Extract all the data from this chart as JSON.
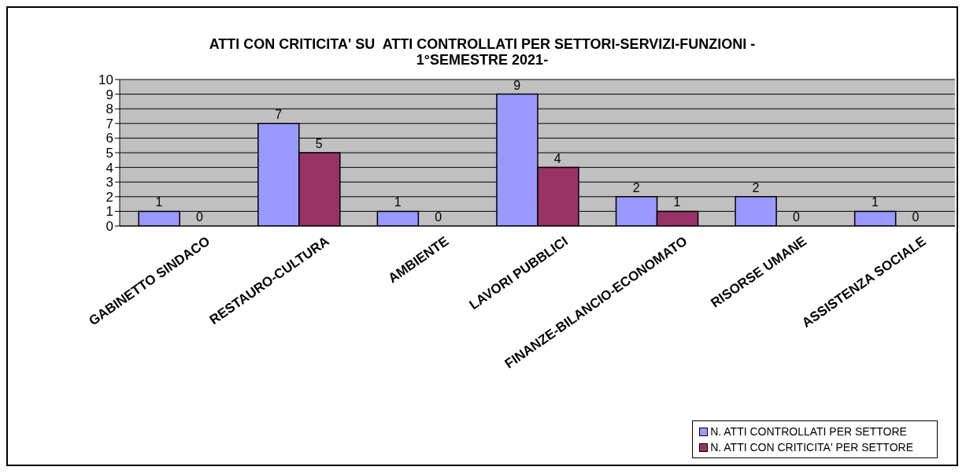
{
  "chart_data": {
    "type": "bar",
    "title": "ATTI CON CRITICITA' SU  ATTI CONTROLLATI PER SETTORI-SERVIZI-FUNZIONI -\n1°SEMESTRE 2021-",
    "categories": [
      "GABINETTO SINDACO",
      "RESTAURO-CULTURA",
      "AMBIENTE",
      "LAVORI PUBBLICI",
      "FINANZE-BILANCIO-ECONOMATO",
      "RISORSE UMANE",
      "ASSISTENZA SOCIALE"
    ],
    "series": [
      {
        "name": "N. ATTI CONTROLLATI  PER SETTORE",
        "color": "#9999ff",
        "values": [
          1,
          7,
          1,
          9,
          2,
          2,
          1
        ]
      },
      {
        "name": "N. ATTI CON CRITICITA' PER SETTORE",
        "color": "#993366",
        "values": [
          0,
          5,
          0,
          4,
          1,
          0,
          0
        ]
      }
    ],
    "ylim": [
      0,
      10
    ],
    "yticks": [
      0,
      1,
      2,
      3,
      4,
      5,
      6,
      7,
      8,
      9,
      10
    ],
    "grid": "y",
    "legend": "bottom right",
    "data_labels": true
  }
}
